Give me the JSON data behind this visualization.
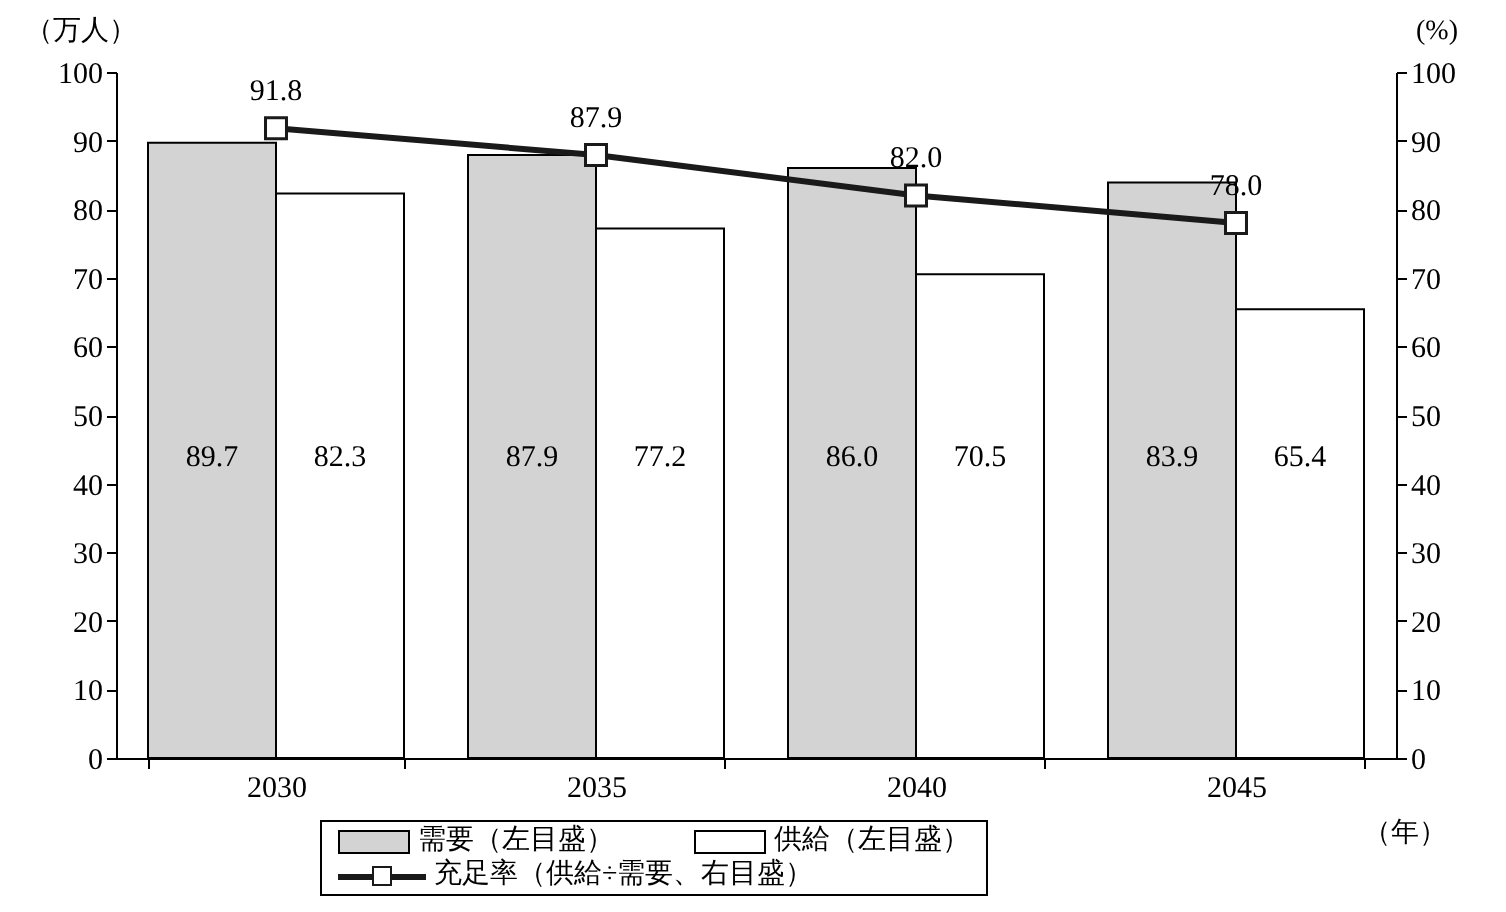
{
  "chart_data": {
    "type": "bar",
    "categories": [
      "2030",
      "2035",
      "2040",
      "2045"
    ],
    "xlabel": "（年）",
    "ylabel": "（万人）",
    "y2label": "(%)",
    "ylim": [
      0,
      100
    ],
    "yticks": [
      0,
      10,
      20,
      30,
      40,
      50,
      60,
      70,
      80,
      90,
      100
    ],
    "y2lim": [
      0,
      100
    ],
    "y2ticks": [
      0,
      10,
      20,
      30,
      40,
      50,
      60,
      70,
      80,
      90,
      100
    ],
    "series": [
      {
        "name": "需要（左目盛）",
        "color": "#d3d3d3",
        "values": [
          89.7,
          87.9,
          86.0,
          83.9
        ],
        "value_labels": [
          "89.7",
          "87.9",
          "86.0",
          "83.9"
        ]
      },
      {
        "name": "供給（左目盛）",
        "color": "#ffffff",
        "values": [
          82.3,
          77.2,
          70.5,
          65.4
        ],
        "value_labels": [
          "82.3",
          "77.2",
          "70.5",
          "65.4"
        ]
      },
      {
        "name": "充足率（供給÷需要、右目盛）",
        "type": "line",
        "axis": "y2",
        "color": "#1a1a1a",
        "marker": "square",
        "line_style": "solid",
        "values": [
          91.8,
          87.9,
          82.0,
          78.0
        ],
        "value_labels": [
          "91.8",
          "87.9",
          "82.0",
          "78.0"
        ]
      }
    ],
    "grid": false,
    "legend": "bottom"
  }
}
